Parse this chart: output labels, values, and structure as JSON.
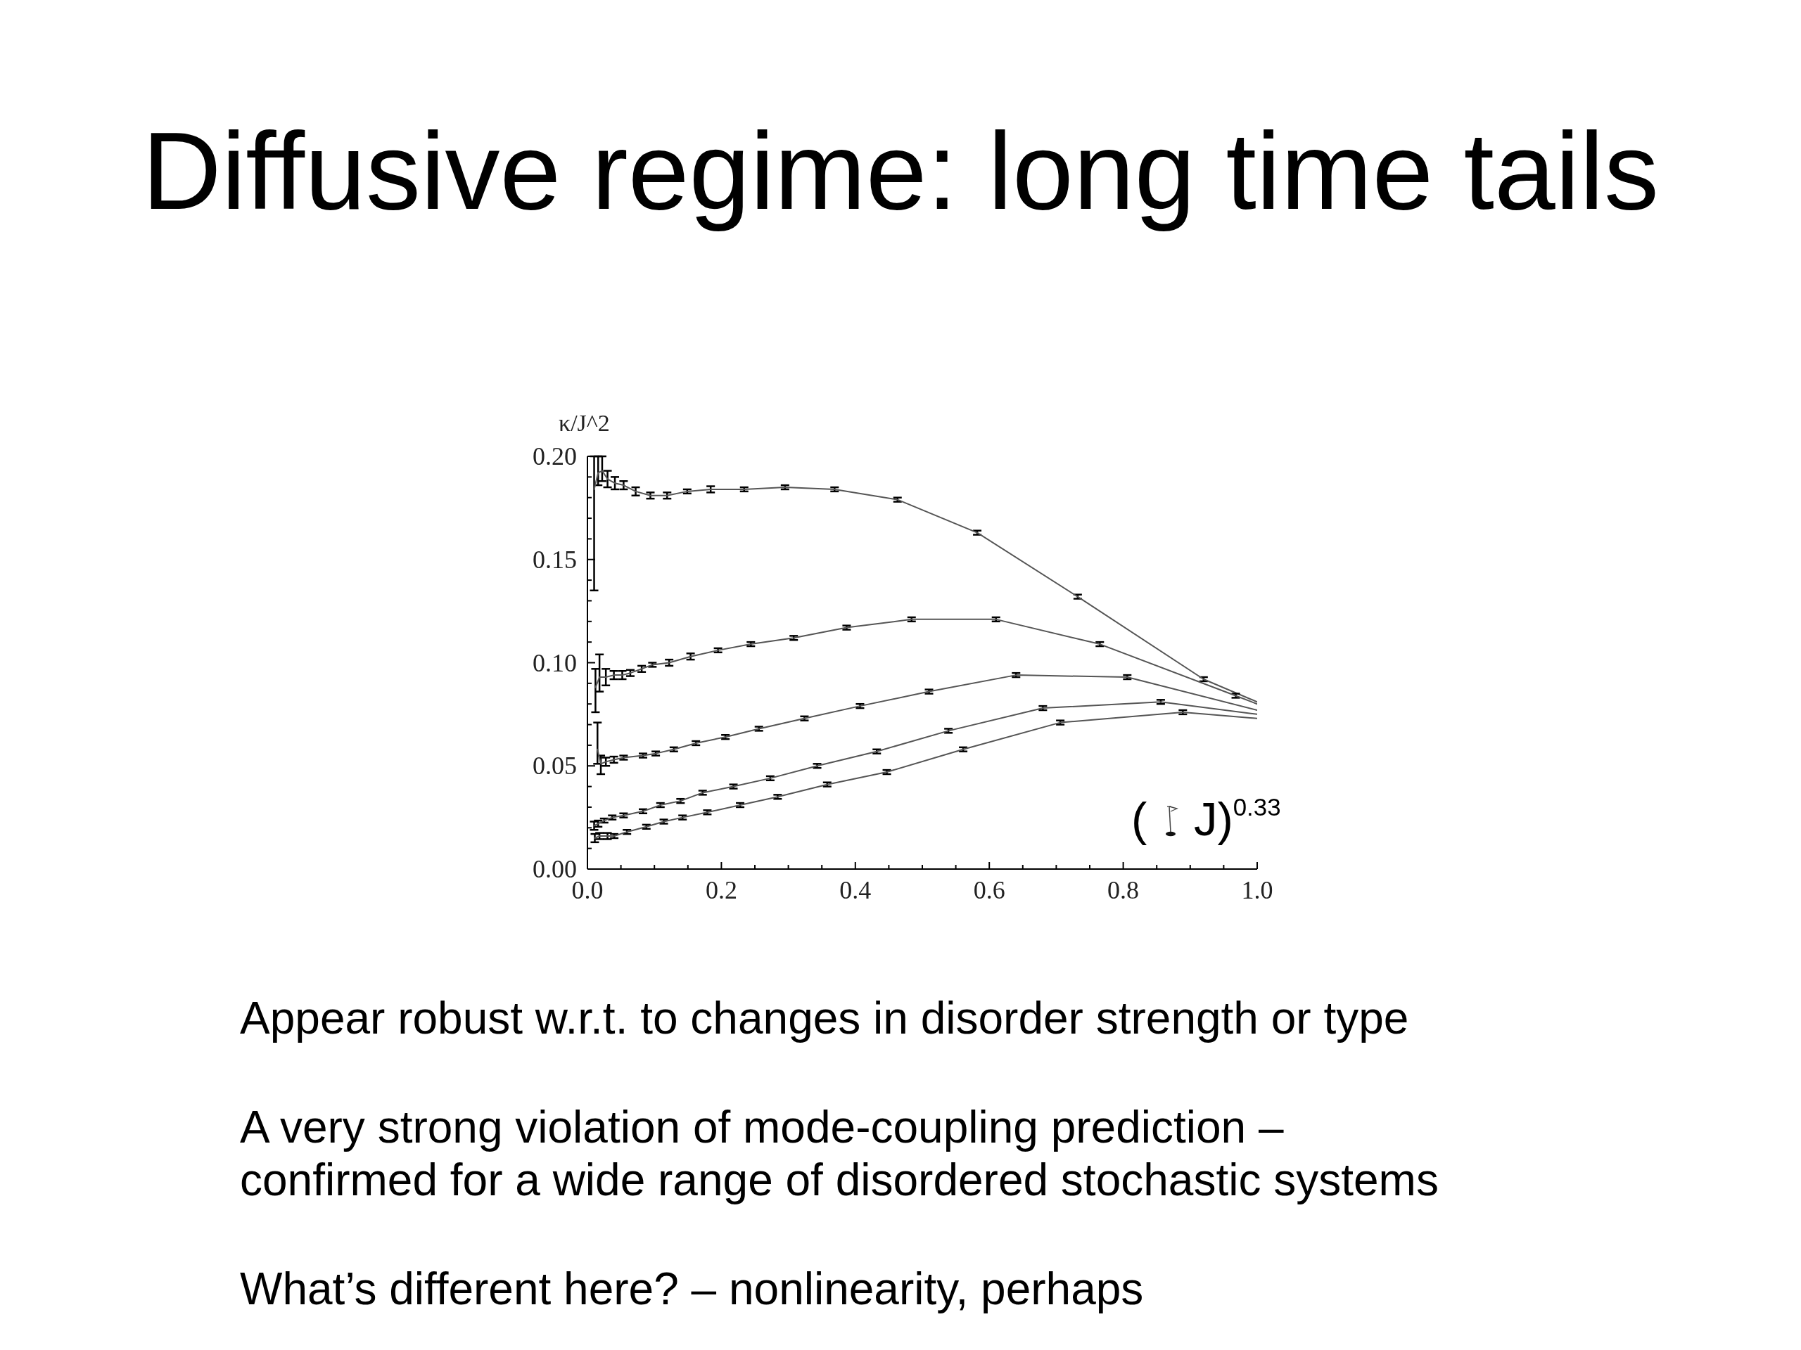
{
  "chart_data": {
    "type": "line",
    "title": "Diffusive regime: long time tails",
    "xlabel": "( J)$^{0.33}$",
    "ylabel": "κ/J^2",
    "annotations": [
      "Appear robust w.r.t. to changes in disorder strength or type",
      "A very strong violation of mode-coupling prediction –\nconfirmed for a wide range of disordered stochastic systems",
      "What’s different here? – nonlinearity, perhaps"
    ],
    "xlim": [
      0,
      1
    ],
    "ylim": [
      0,
      0.2
    ],
    "xticks": [
      {
        "value": 0,
        "label": "0.0"
      },
      {
        "value": 0.05,
        "label": null
      },
      {
        "value": 0.1,
        "label": null
      },
      {
        "value": 0.15,
        "label": null
      },
      0.2,
      {
        "value": 0.25,
        "label": null
      },
      {
        "value": 0.3,
        "label": null
      },
      {
        "value": 0.35,
        "label": null
      },
      0.4,
      {
        "value": 0.45,
        "label": null
      },
      {
        "value": 0.5,
        "label": null
      },
      {
        "value": 0.55,
        "label": null
      },
      0.6,
      {
        "value": 0.65,
        "label": null
      },
      {
        "value": 0.7,
        "label": null
      },
      {
        "value": 0.75,
        "label": null
      },
      0.8,
      {
        "value": 0.85,
        "label": null
      },
      {
        "value": 0.9,
        "label": null
      },
      {
        "value": 0.95,
        "label": null
      },
      {
        "value": 1,
        "label": "1.0"
      }
    ],
    "yticks": [
      {
        "value": 0,
        "label": "0.00"
      },
      {
        "value": 0.01,
        "label": null
      },
      {
        "value": 0.02,
        "label": null
      },
      {
        "value": 0.03,
        "label": null
      },
      {
        "value": 0.04,
        "label": null
      },
      {
        "value": 0.05,
        "label": "0.05"
      },
      {
        "value": 0.06,
        "label": null
      },
      {
        "value": 0.07,
        "label": null
      },
      {
        "value": 0.08,
        "label": null
      },
      {
        "value": 0.09,
        "label": null
      },
      {
        "value": 0.1,
        "label": "0.10"
      },
      {
        "value": 0.11,
        "label": null
      },
      {
        "value": 0.12,
        "label": null
      },
      {
        "value": 0.13,
        "label": null
      },
      {
        "value": 0.14,
        "label": null
      },
      {
        "value": 0.15,
        "label": "0.15"
      },
      {
        "value": 0.16,
        "label": null
      },
      {
        "value": 0.17,
        "label": null
      },
      {
        "value": 0.18,
        "label": null
      },
      {
        "value": 0.19,
        "label": null
      },
      {
        "value": 0.2,
        "label": "0.20"
      }
    ],
    "series": [
      {
        "color": "#555555",
        "x": [
          0.01,
          0.016,
          0.022,
          0.03,
          0.041,
          0.054,
          0.072,
          0.094,
          0.119,
          0.149,
          0.184,
          0.234,
          0.295,
          0.369,
          0.463,
          0.582,
          0.732,
          0.92,
          1.0
        ],
        "values": [
          0.184,
          0.192,
          0.193,
          0.189,
          0.187,
          0.186,
          0.183,
          0.181,
          0.181,
          0.183,
          0.184,
          0.184,
          0.185,
          0.184,
          0.179,
          0.163,
          0.132,
          0.092,
          0.081
        ],
        "errors": [
          [
            0.135,
            0.2
          ],
          [
            0.186,
            0.2
          ],
          [
            0.188,
            0.2
          ],
          0.004,
          0.003,
          0.002,
          0.002,
          0.0015,
          0.0015,
          0.001,
          0.0015,
          0.001,
          0.001,
          0.001,
          0.001,
          0.001,
          0.001,
          0.001,
          null
        ]
      },
      {
        "color": "#555555",
        "x": [
          0.012,
          0.018,
          0.0275,
          0.0395,
          0.052,
          0.064,
          0.081,
          0.097,
          0.122,
          0.154,
          0.195,
          0.244,
          0.308,
          0.387,
          0.484,
          0.61,
          0.765,
          0.968,
          1.0
        ],
        "values": [
          0.088,
          0.093,
          0.093,
          0.094,
          0.094,
          0.095,
          0.097,
          0.099,
          0.1,
          0.103,
          0.106,
          0.109,
          0.112,
          0.117,
          0.121,
          0.121,
          0.109,
          0.084,
          0.08
        ],
        "errors": [
          [
            0.076,
            0.097
          ],
          [
            0.086,
            0.104
          ],
          0.004,
          0.002,
          0.002,
          0.0015,
          0.0015,
          0.001,
          0.0015,
          0.0015,
          0.001,
          0.001,
          0.001,
          0.001,
          0.001,
          0.001,
          0.001,
          0.001,
          null
        ]
      },
      {
        "color": "#555555",
        "x": [
          0.015,
          0.02,
          0.0275,
          0.0395,
          0.054,
          0.083,
          0.102,
          0.129,
          0.162,
          0.206,
          0.256,
          0.324,
          0.407,
          0.51,
          0.64,
          0.806,
          1.0
        ],
        "values": [
          0.058,
          0.051,
          0.052,
          0.053,
          0.054,
          0.055,
          0.056,
          0.058,
          0.061,
          0.064,
          0.068,
          0.073,
          0.079,
          0.086,
          0.094,
          0.093,
          0.077
        ],
        "errors": [
          [
            0.051,
            0.071
          ],
          [
            0.046,
            0.055
          ],
          0.002,
          0.0015,
          0.001,
          0.001,
          0.001,
          0.001,
          0.001,
          0.001,
          0.001,
          0.001,
          0.001,
          0.001,
          0.001,
          0.001,
          null
        ]
      },
      {
        "color": "#555555",
        "x": [
          0.01,
          0.016,
          0.025,
          0.037,
          0.054,
          0.083,
          0.109,
          0.139,
          0.172,
          0.218,
          0.273,
          0.343,
          0.432,
          0.539,
          0.68,
          0.856,
          1.0
        ],
        "values": [
          0.021,
          0.022,
          0.0235,
          0.025,
          0.026,
          0.028,
          0.031,
          0.033,
          0.037,
          0.04,
          0.044,
          0.05,
          0.057,
          0.067,
          0.078,
          0.081,
          0.075
        ],
        "errors": [
          0.002,
          0.0015,
          0.001,
          0.001,
          0.001,
          0.001,
          0.001,
          0.001,
          0.001,
          0.001,
          0.001,
          0.001,
          0.001,
          0.001,
          0.001,
          0.001,
          null
        ]
      },
      {
        "color": "#555555",
        "x": [
          0.011,
          0.018,
          0.03,
          0.04,
          0.059,
          0.088,
          0.114,
          0.142,
          0.179,
          0.228,
          0.284,
          0.358,
          0.447,
          0.561,
          0.706,
          0.889,
          1.0
        ],
        "values": [
          0.015,
          0.016,
          0.016,
          0.016,
          0.018,
          0.0205,
          0.023,
          0.025,
          0.0275,
          0.031,
          0.035,
          0.041,
          0.047,
          0.058,
          0.071,
          0.076,
          0.073
        ],
        "errors": [
          0.002,
          0.0015,
          0.0015,
          0.001,
          0.001,
          0.001,
          0.001,
          0.001,
          0.001,
          0.001,
          0.001,
          0.001,
          0.001,
          0.001,
          0.001,
          0.001,
          null
        ]
      }
    ]
  }
}
